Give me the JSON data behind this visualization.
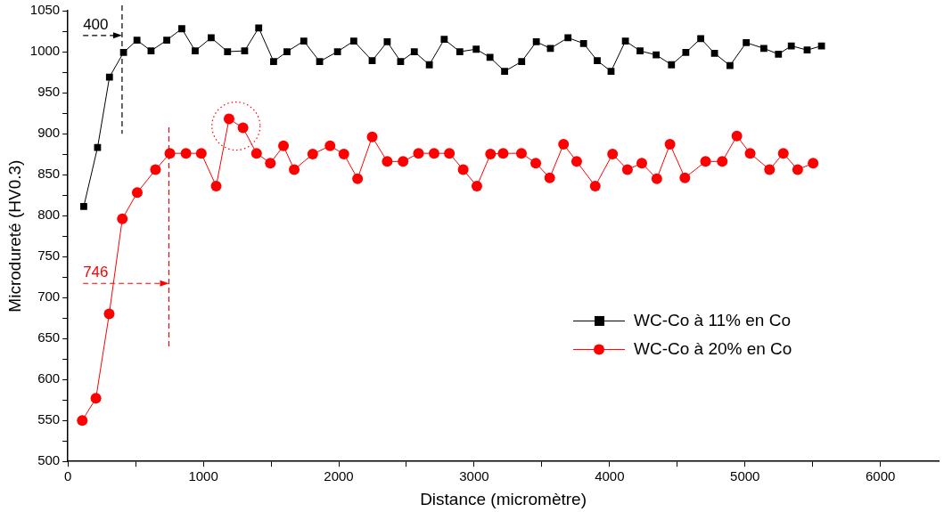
{
  "chart_data": {
    "type": "line",
    "xlabel": "Distance (micromètre)",
    "ylabel": "Microdureté (HV0.3)",
    "xlim": [
      0,
      6430
    ],
    "xticks": [
      0,
      {
        "value": 500,
        "label": null
      },
      1000,
      {
        "value": 1500,
        "label": null
      },
      2000,
      {
        "value": 2500,
        "label": null
      },
      3000,
      {
        "value": 3500,
        "label": null
      },
      4000,
      {
        "value": 4500,
        "label": null
      },
      5000,
      {
        "value": 5500,
        "label": null
      },
      6000
    ],
    "ylim": [
      500,
      1050
    ],
    "yticks": [
      500,
      {
        "value": 525,
        "label": null
      },
      550,
      {
        "value": 575,
        "label": null
      },
      600,
      {
        "value": 625,
        "label": null
      },
      650,
      {
        "value": 675,
        "label": null
      },
      700,
      {
        "value": 725,
        "label": null
      },
      750,
      {
        "value": 775,
        "label": null
      },
      800,
      {
        "value": 825,
        "label": null
      },
      850,
      {
        "value": 875,
        "label": null
      },
      900,
      {
        "value": 925,
        "label": null
      },
      950,
      {
        "value": 975,
        "label": null
      },
      1000,
      {
        "value": 1025,
        "label": null
      },
      1050
    ],
    "grid": false,
    "legend": "right",
    "line_style": "solid",
    "ref_lines": [
      {
        "axis": "x",
        "value": 400,
        "label": "400",
        "color": "#000000",
        "line_style": "dashed"
      },
      {
        "axis": "x",
        "value": 746,
        "label": "746",
        "color": "#ff0000",
        "line_style": "dashed"
      }
    ],
    "series": [
      {
        "name": "WC-Co à 11% en Co",
        "color": "#000000",
        "marker": "square",
        "x": [
          117,
          219,
          307,
          411,
          510,
          614,
          730,
          841,
          940,
          1058,
          1179,
          1305,
          1409,
          1519,
          1618,
          1742,
          1859,
          1991,
          2111,
          2247,
          2358,
          2457,
          2558,
          2669,
          2779,
          2894,
          3015,
          3117,
          3225,
          3351,
          3459,
          3563,
          3693,
          3808,
          3909,
          4011,
          4117,
          4225,
          4344,
          4457,
          4563,
          4673,
          4775,
          4889,
          5009,
          5139,
          5247,
          5342,
          5459,
          5565
        ],
        "values": [
          811,
          883,
          969,
          999,
          1014,
          1001,
          1014,
          1028,
          1001,
          1017,
          1000,
          1001,
          1029,
          988,
          1000,
          1013,
          988,
          1000,
          1013,
          989,
          1012,
          988,
          1000,
          984,
          1015,
          1000,
          1003,
          993,
          976,
          988,
          1012,
          1004,
          1017,
          1010,
          989,
          976,
          1013,
          1001,
          996,
          984,
          999,
          1016,
          998,
          983,
          1011,
          1004,
          997,
          1007,
          1002,
          1007
        ]
      },
      {
        "name": "WC-Co à 20% en Co",
        "color": "#ff0000",
        "marker": "circle",
        "x": [
          106,
          207,
          305,
          402,
          512,
          647,
          753,
          872,
          985,
          1095,
          1190,
          1293,
          1393,
          1495,
          1592,
          1671,
          1808,
          1936,
          2038,
          2139,
          2247,
          2358,
          2475,
          2589,
          2704,
          2817,
          2919,
          3020,
          3121,
          3214,
          3349,
          3455,
          3558,
          3660,
          3757,
          3894,
          4022,
          4132,
          4238,
          4349,
          4446,
          4556,
          4709,
          4832,
          4940,
          5038,
          5181,
          5283,
          5389,
          5503
        ],
        "values": [
          550,
          577,
          680,
          796,
          828,
          856,
          876,
          876,
          876,
          836,
          918,
          907,
          876,
          864,
          885,
          856,
          875,
          885,
          875,
          845,
          896,
          866,
          866,
          876,
          876,
          876,
          856,
          836,
          875,
          876,
          876,
          864,
          846,
          887,
          866,
          836,
          875,
          856,
          864,
          845,
          887,
          846,
          866,
          866,
          897,
          876,
          856,
          876,
          856,
          864
        ]
      }
    ]
  }
}
